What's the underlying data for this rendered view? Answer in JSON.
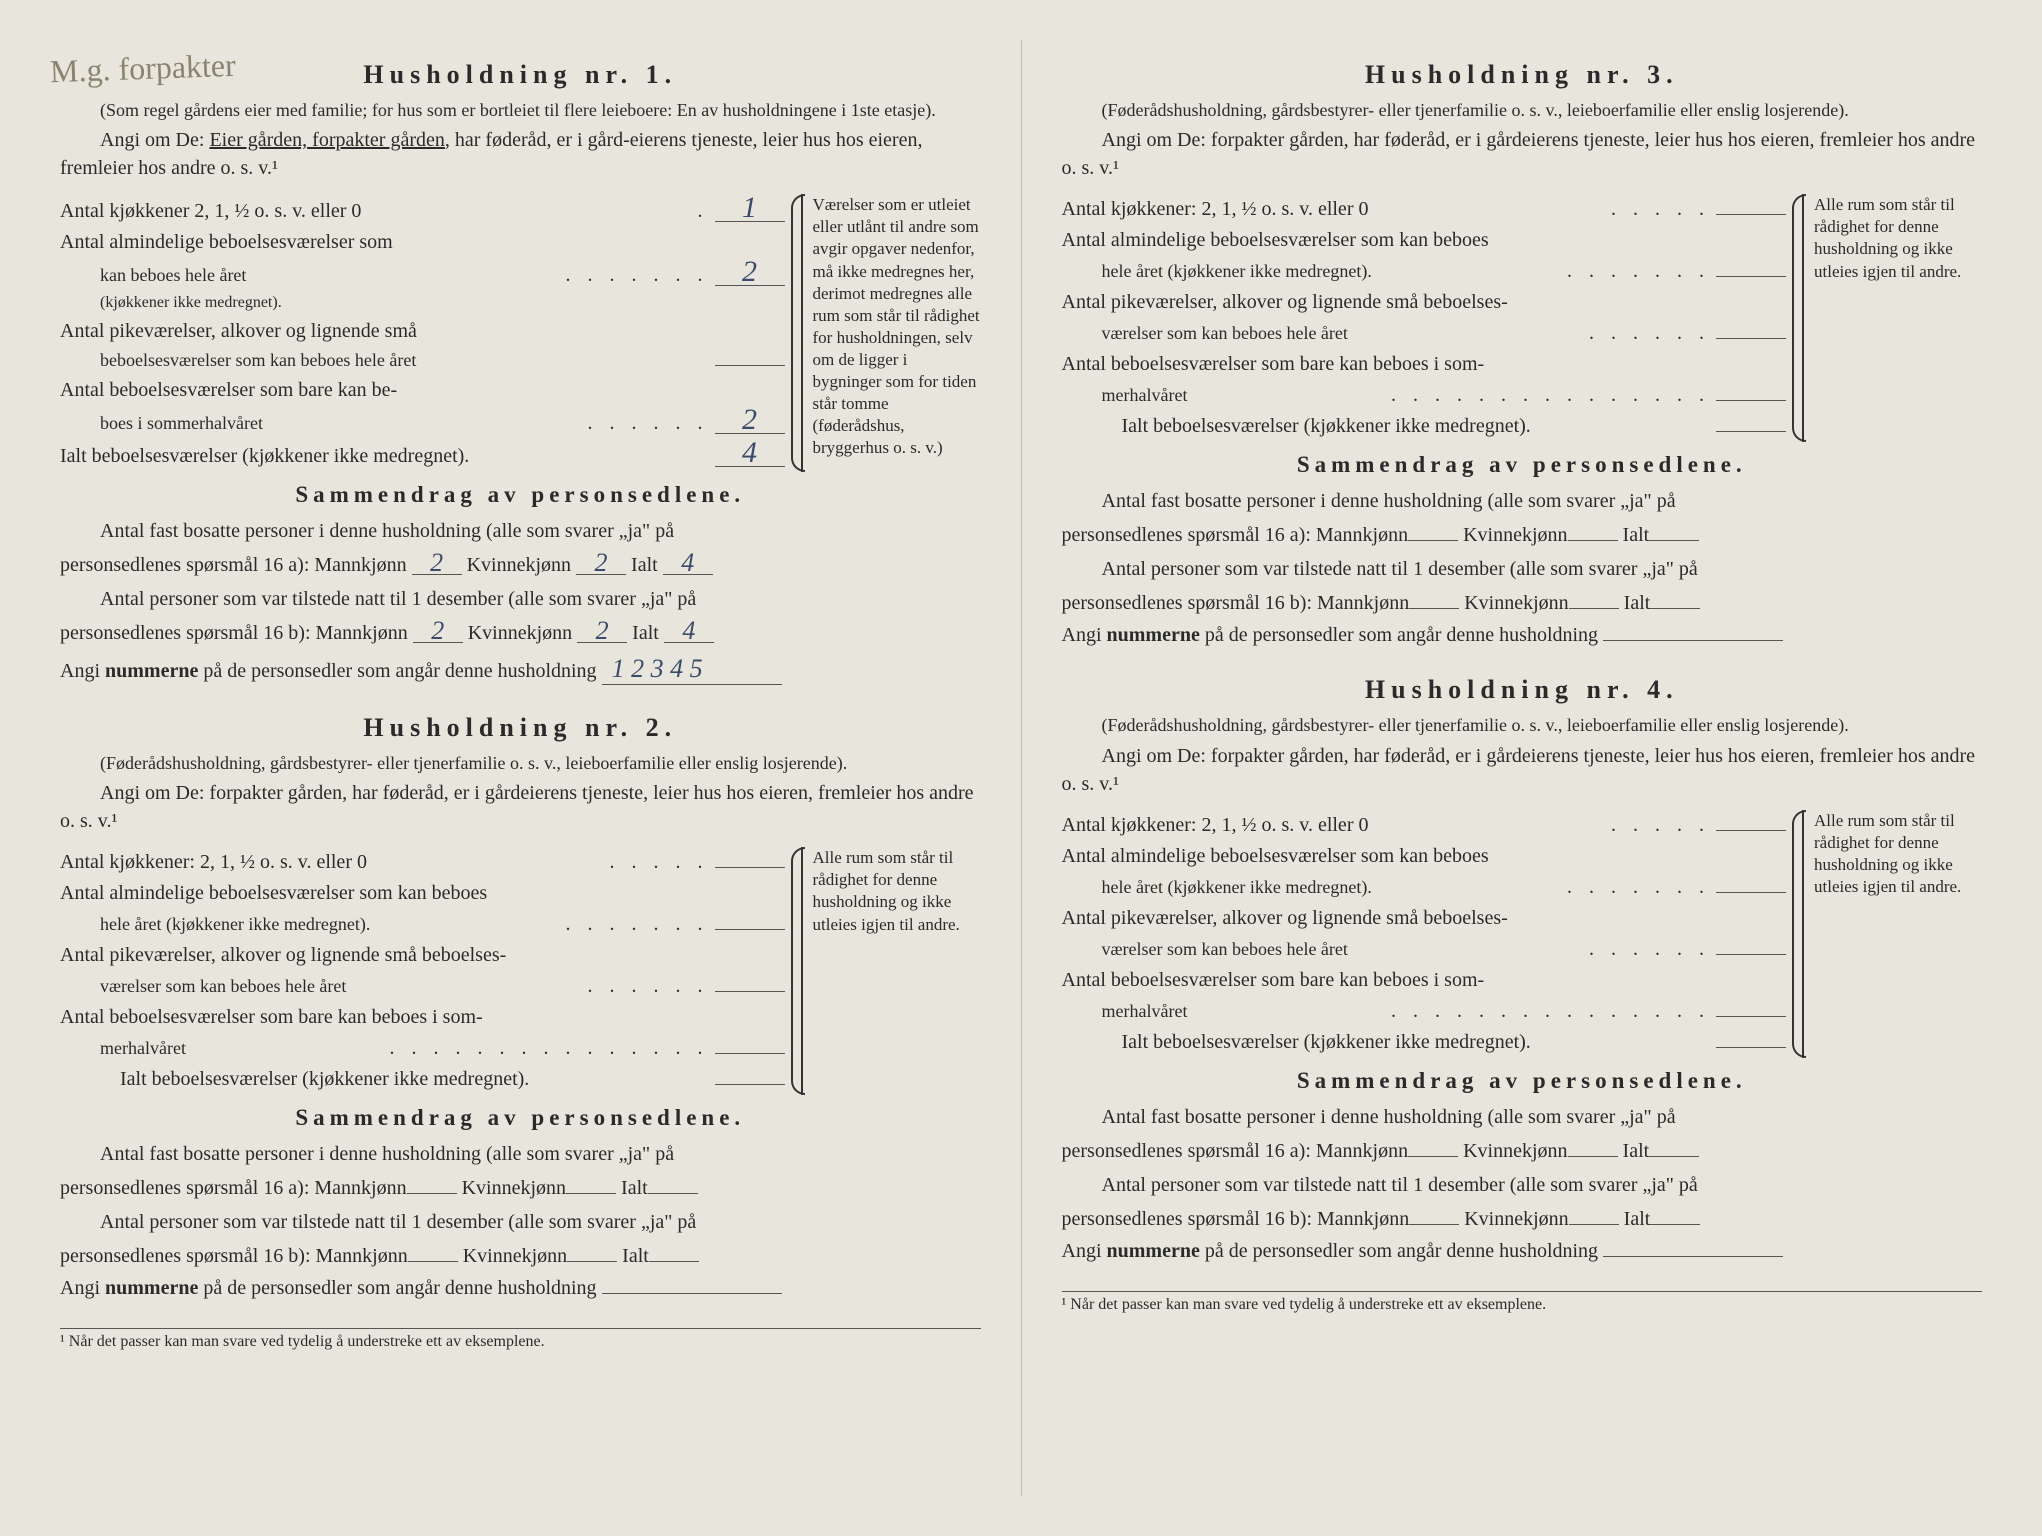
{
  "handwriting": "M.g. forpakter",
  "sidenote1": "Værelser som er utleiet eller utlånt til andre som avgir opgaver nedenfor, må ikke medregnes her, derimot medregnes alle rum som står til rådighet for husholdningen, selv om de ligger i bygninger som for tiden står tomme (føderådshus, bryggerhus o. s. v.)",
  "sidenote2": "Alle rum som står til rådighet for denne husholdning og ikke utleies igjen til andre.",
  "summary_title": "Sammendrag av personsedlene.",
  "summary_l1a": "Antal fast bosatte personer i denne husholdning (alle som svarer „ja\" på",
  "summary_l1b": "personsedlenes spørsmål 16 a): Mannkjønn",
  "summary_l2a": "Antal personer som var tilstede natt til 1 desember (alle som svarer „ja\" på",
  "summary_l2b": "personsedlenes spørsmål 16 b): Mannkjønn",
  "kv_label": "Kvinnekjønn",
  "ialt_label": "Ialt",
  "nummer_label_a": "Angi ",
  "nummer_label_b": "nummerne",
  "nummer_label_c": " på de personsedler som angår denne husholdning",
  "footnote": "¹ Når det passer kan man svare ved tydelig å understreke ett av eksemplene.",
  "row_kjokken": "Antal kjøkkener 2, 1, ½ o. s. v. eller 0",
  "row_kjokken_b": "Antal kjøkkener: 2, 1, ½ o. s. v. eller 0",
  "row_alm1": "Antal almindelige beboelsesværelser som",
  "row_alm2": "kan beboes hele året",
  "row_alm2b": "(kjøkkener ikke medregnet).",
  "row_almB1": "Antal almindelige beboelsesværelser som kan beboes",
  "row_almB2": "hele året (kjøkkener ikke medregnet).",
  "row_pike1": "Antal pikeværelser, alkover og lignende små",
  "row_pike2": "beboelsesværelser som kan beboes hele året",
  "row_pikeB1": "Antal pikeværelser, alkover og lignende små beboelses-",
  "row_pikeB2": "værelser som kan beboes hele året",
  "row_sommer1": "Antal beboelsesværelser som bare kan be-",
  "row_sommer2": "boes i sommerhalvåret",
  "row_sommerB1": "Antal beboelsesværelser som bare kan beboes i som-",
  "row_sommerB2": "merhalvåret",
  "row_total": "Ialt beboelsesværelser (kjøkkener ikke medregnet).",
  "hh1": {
    "title": "Husholdning nr. 1.",
    "subtitle": "(Som regel gårdens eier med familie; for hus som er bortleiet til flere leieboere: En av husholdningene i 1ste etasje).",
    "angi_a": "Angi om De:  ",
    "angi_opt1": "Eier gården,",
    "angi_opt2": " forpakter gården",
    "angi_b": ", har føderåd, er i gård-eierens tjeneste, leier hus hos eieren, fremleier hos andre o. s. v.¹",
    "kjokken": "1",
    "alm": "2",
    "pike": "",
    "sommer": "2",
    "total": "4",
    "mann_a": "2",
    "kv_a": "2",
    "ialt_a": "4",
    "mann_b": "2",
    "kv_b": "2",
    "ialt_b": "4",
    "nummer": "1 2 3 4 5"
  },
  "hh2": {
    "title": "Husholdning nr. 2.",
    "subtitle": "(Føderådshusholdning, gårdsbestyrer- eller tjenerfamilie o. s. v., leieboerfamilie eller enslig losjerende).",
    "angi": "Angi om De:  forpakter gården, har føderåd, er i gårdeierens tjeneste, leier hus hos eieren, fremleier hos andre o. s. v.¹"
  },
  "hh3": {
    "title": "Husholdning nr. 3.",
    "subtitle": "(Føderådshusholdning, gårdsbestyrer- eller tjenerfamilie o. s. v., leieboerfamilie eller enslig losjerende).",
    "angi": "Angi om De:  forpakter gården, har føderåd, er i gårdeierens tjeneste, leier hus hos eieren, fremleier hos andre o. s. v.¹"
  },
  "hh4": {
    "title": "Husholdning nr. 4.",
    "subtitle": "(Føderådshusholdning, gårdsbestyrer- eller tjenerfamilie o. s. v., leieboerfamilie eller enslig losjerende).",
    "angi": "Angi om De:  forpakter gården, har føderåd, er i gårdeierens tjeneste, leier hus hos eieren, fremleier hos andre o. s. v.¹"
  }
}
